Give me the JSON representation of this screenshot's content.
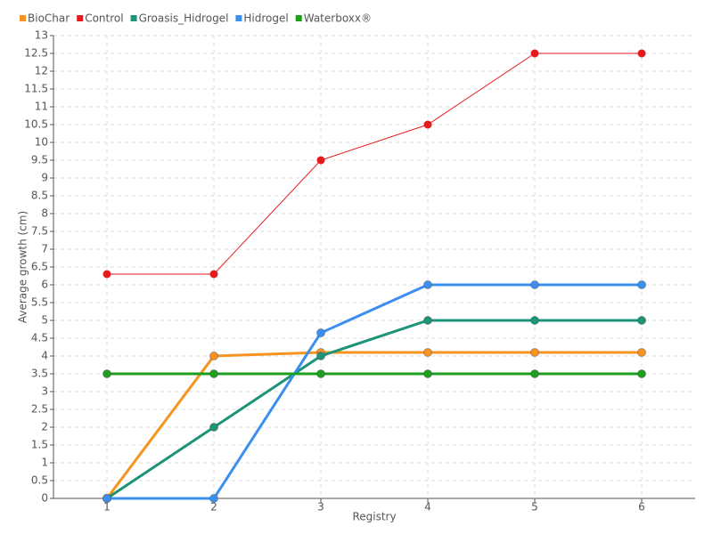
{
  "chart_data": {
    "type": "line",
    "x_label": "Registry",
    "y_label": "Average growth (cm)",
    "x": [
      1,
      2,
      3,
      4,
      5,
      6
    ],
    "xlim": [
      0.5,
      6.5
    ],
    "xticks": [
      1,
      2,
      3,
      4,
      5,
      6
    ],
    "ylim": [
      0,
      13
    ],
    "yticks": [
      0,
      0.5,
      1,
      1.5,
      2,
      2.5,
      3,
      3.5,
      4,
      4.5,
      5,
      5.5,
      6,
      6.5,
      7,
      7.5,
      8,
      8.5,
      9,
      9.5,
      10,
      10.5,
      11,
      11.5,
      12,
      12.5,
      13
    ],
    "grid": true,
    "legend": "top-left",
    "series": [
      {
        "name": "BioChar",
        "color": "#f7931e",
        "line_width": 3,
        "values": [
          0,
          4,
          4.1,
          4.1,
          4.1,
          4.1
        ]
      },
      {
        "name": "Control",
        "color": "#e41a1c",
        "line_width": 1,
        "values": [
          6.3,
          6.3,
          9.5,
          10.5,
          12.5,
          12.5
        ]
      },
      {
        "name": "Groasis_Hidrogel",
        "color": "#1b9478",
        "line_width": 3,
        "values": [
          0,
          2,
          4,
          5,
          5,
          5
        ]
      },
      {
        "name": "Hidrogel",
        "color": "#3b8ff0",
        "line_width": 3,
        "values": [
          0,
          0,
          4.65,
          6,
          6,
          6
        ]
      },
      {
        "name": "Waterboxx®",
        "color": "#1e9e1e",
        "line_width": 3,
        "values": [
          3.5,
          3.5,
          3.5,
          3.5,
          3.5,
          3.5
        ]
      }
    ]
  }
}
